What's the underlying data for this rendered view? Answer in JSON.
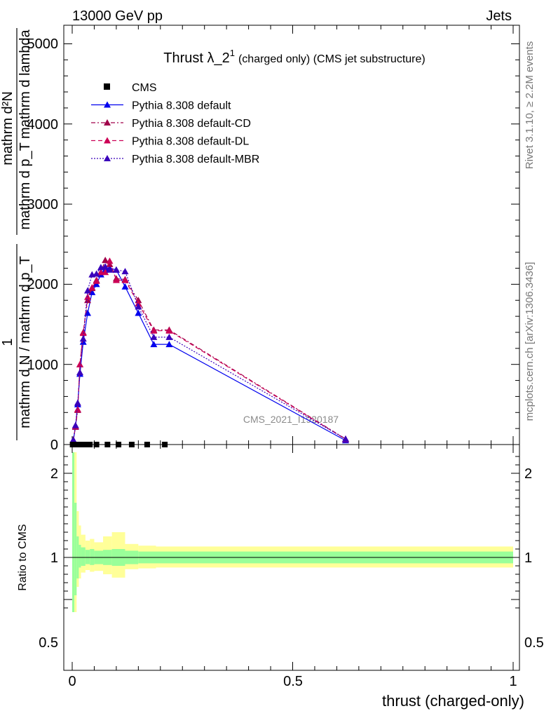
{
  "header": {
    "left": "13000 GeV pp",
    "right": "Jets"
  },
  "side": {
    "rivet": "Rivet 3.1.10, ≥ 2.2M events",
    "mcplots": "mcplots.cern.ch [arXiv:1306.3436]"
  },
  "main_plot": {
    "title_main": "Thrust λ_2",
    "title_sup": "1",
    "title_sub": "(charged only) (CMS jet substructure)",
    "watermark": "CMS_2021_I1920187",
    "ylabel": {
      "num1": "1",
      "den1": "mathrm d N / mathrm d p_T",
      "num2": "mathrm d²N",
      "den2": "mathrm d p_T mathrm d lambda"
    },
    "ytick_labels": [
      "0",
      "1000",
      "2000",
      "3000",
      "4000",
      "5000"
    ]
  },
  "ratio_plot": {
    "ylabel": "Ratio to CMS",
    "ytick_labels": [
      "0.5",
      "1",
      "2"
    ]
  },
  "xaxis": {
    "label": "thrust (charged-only)",
    "tick_labels": [
      "0",
      "0.5",
      "1"
    ]
  },
  "legend": [
    {
      "label": "CMS",
      "color": "#000000",
      "marker": "square",
      "dash": ""
    },
    {
      "label": "Pythia 8.308 default",
      "color": "#0000ee",
      "marker": "triangle",
      "dash": ""
    },
    {
      "label": "Pythia 8.308 default-CD",
      "color": "#a0004a",
      "marker": "triangle",
      "dash": "6,3,2,3"
    },
    {
      "label": "Pythia 8.308 default-DL",
      "color": "#cc0055",
      "marker": "triangle",
      "dash": "6,4"
    },
    {
      "label": "Pythia 8.308 default-MBR",
      "color": "#3a00bb",
      "marker": "triangle",
      "dash": "2,2"
    }
  ],
  "chart_data": {
    "type": "line",
    "xlim": [
      -0.02,
      1.0
    ],
    "ylim": [
      0,
      5200
    ],
    "ratio_ylim": [
      0.35,
      2.25
    ],
    "x": [
      0.0025,
      0.0075,
      0.0125,
      0.0175,
      0.025,
      0.035,
      0.045,
      0.055,
      0.065,
      0.075,
      0.085,
      0.1,
      0.12,
      0.15,
      0.185,
      0.22,
      0.62
    ],
    "cms": {
      "name": "CMS",
      "x": [
        0.001,
        0.004,
        0.008,
        0.013,
        0.02,
        0.03,
        0.04,
        0.055,
        0.08,
        0.105,
        0.135,
        0.17,
        0.21
      ],
      "values": [
        0,
        0,
        0,
        0,
        0,
        0,
        0,
        0,
        0,
        0,
        0,
        0,
        0
      ]
    },
    "series": [
      {
        "name": "Pythia 8.308 default",
        "values": [
          50,
          220,
          500,
          880,
          1280,
          1640,
          1900,
          2000,
          2120,
          2180,
          2200,
          2180,
          1970,
          1640,
          1250,
          1250,
          50
        ]
      },
      {
        "name": "Pythia 8.308 default-CD",
        "values": [
          50,
          220,
          430,
          1000,
          1400,
          1800,
          1950,
          2050,
          2150,
          2300,
          2250,
          2070,
          2060,
          1800,
          1430,
          1430,
          70
        ]
      },
      {
        "name": "Pythia 8.308 default-DL",
        "values": [
          50,
          230,
          440,
          1000,
          1390,
          1840,
          1960,
          2040,
          2150,
          2150,
          2290,
          2050,
          2050,
          1760,
          1420,
          1420,
          65
        ]
      },
      {
        "name": "Pythia 8.308 default-MBR",
        "values": [
          60,
          240,
          520,
          900,
          1320,
          1920,
          2120,
          2130,
          2210,
          2220,
          2180,
          2180,
          2160,
          1720,
          1340,
          1340,
          70
        ]
      }
    ],
    "ratio_bands": {
      "edges": [
        0,
        0.005,
        0.01,
        0.015,
        0.02,
        0.03,
        0.04,
        0.05,
        0.07,
        0.09,
        0.12,
        0.15,
        0.19,
        1.0
      ],
      "inner": [
        [
          0.35,
          2.25
        ],
        [
          0.55,
          1.65
        ],
        [
          0.75,
          1.25
        ],
        [
          0.88,
          1.15
        ],
        [
          0.9,
          1.12
        ],
        [
          0.92,
          1.09
        ],
        [
          0.91,
          1.1
        ],
        [
          0.92,
          1.08
        ],
        [
          0.91,
          1.09
        ],
        [
          0.9,
          1.1
        ],
        [
          0.92,
          1.08
        ],
        [
          0.93,
          1.07
        ],
        [
          0.93,
          1.07
        ]
      ],
      "outer": [
        [
          0.35,
          2.25
        ],
        [
          0.35,
          2.25
        ],
        [
          0.65,
          1.55
        ],
        [
          0.75,
          1.38
        ],
        [
          0.82,
          1.27
        ],
        [
          0.85,
          1.2
        ],
        [
          0.83,
          1.22
        ],
        [
          0.84,
          1.18
        ],
        [
          0.8,
          1.25
        ],
        [
          0.76,
          1.3
        ],
        [
          0.86,
          1.16
        ],
        [
          0.87,
          1.14
        ],
        [
          0.88,
          1.13
        ]
      ]
    }
  }
}
